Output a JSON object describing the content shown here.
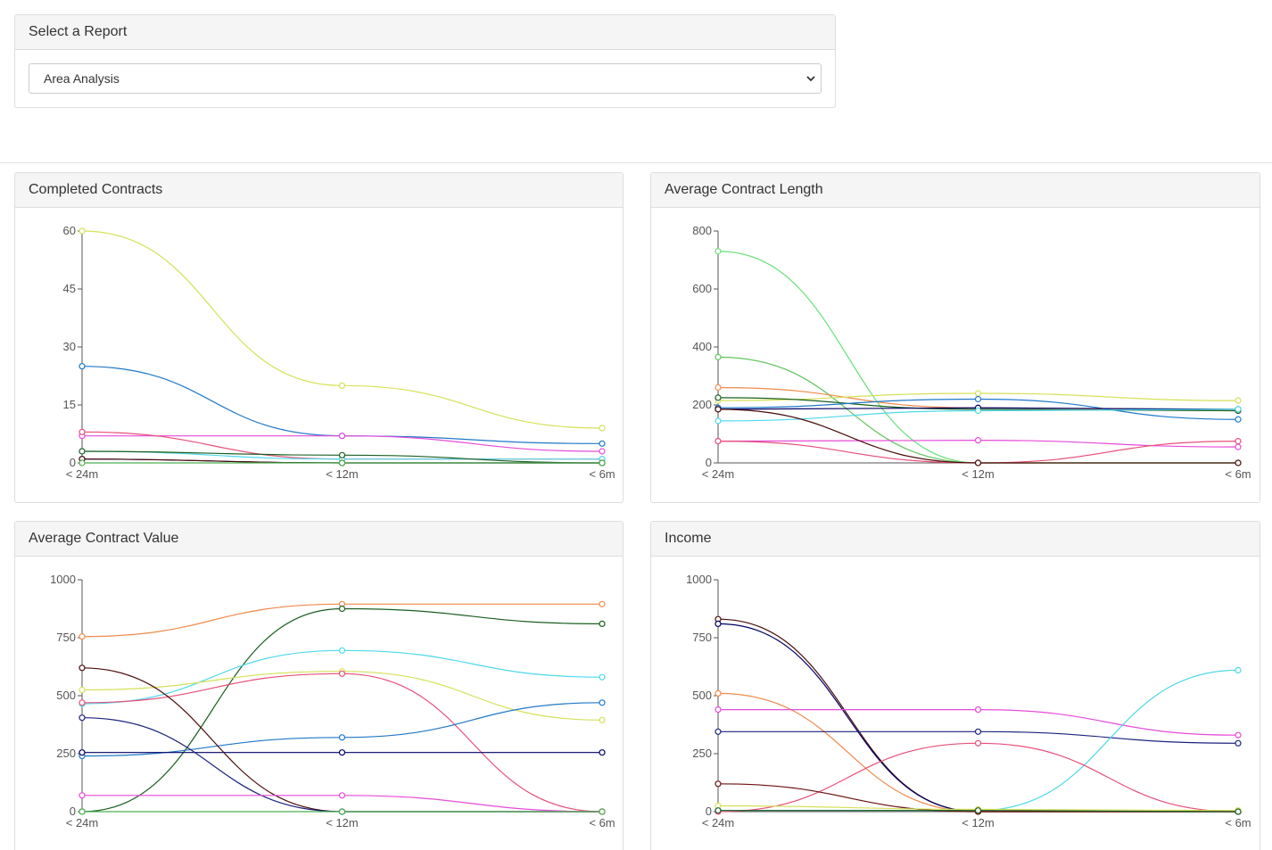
{
  "report": {
    "heading": "Select a Report",
    "selected": "Area Analysis"
  },
  "charts": [
    {
      "title": "Completed Contracts",
      "chart_data": {
        "type": "line",
        "categories": [
          "< 24m",
          "< 12m",
          "< 6m"
        ],
        "ylim": [
          0,
          60
        ],
        "yticks": [
          0,
          15,
          30,
          45,
          60
        ],
        "grid": false,
        "series": [
          {
            "color": "#d4e157",
            "values": [
              60,
              20,
              9
            ]
          },
          {
            "color": "#1f78c8",
            "values": [
              25,
              7,
              5
            ]
          },
          {
            "color": "#e64ad8",
            "values": [
              7,
              7,
              3
            ]
          },
          {
            "color": "#e84f7a",
            "values": [
              8,
              1,
              1
            ]
          },
          {
            "color": "#4dd9ea",
            "values": [
              3,
              1,
              1
            ]
          },
          {
            "color": "#1b5e20",
            "values": [
              3,
              2,
              0
            ]
          },
          {
            "color": "#000066",
            "values": [
              1,
              0,
              0
            ]
          },
          {
            "color": "#4a0a0a",
            "values": [
              1,
              0,
              0
            ]
          },
          {
            "color": "#4caf50",
            "values": [
              0,
              0,
              0
            ]
          }
        ]
      }
    },
    {
      "title": "Average Contract Length",
      "chart_data": {
        "type": "line",
        "categories": [
          "< 24m",
          "< 12m",
          "< 6m"
        ],
        "ylim": [
          0,
          800
        ],
        "yticks": [
          0,
          200,
          400,
          600,
          800
        ],
        "grid": false,
        "series": [
          {
            "color": "#69e07a",
            "values": [
              730,
              0,
              0
            ]
          },
          {
            "color": "#5fc35a",
            "values": [
              365,
              0,
              0
            ]
          },
          {
            "color": "#f08a4b",
            "values": [
              260,
              190,
              180
            ]
          },
          {
            "color": "#d4e157",
            "values": [
              215,
              240,
              215
            ]
          },
          {
            "color": "#1b5e20",
            "values": [
              225,
              185,
              180
            ]
          },
          {
            "color": "#1f78c8",
            "values": [
              190,
              220,
              150
            ]
          },
          {
            "color": "#000066",
            "values": [
              185,
              190,
              185
            ]
          },
          {
            "color": "#4dd9ea",
            "values": [
              145,
              180,
              185
            ]
          },
          {
            "color": "#e64ad8",
            "values": [
              75,
              78,
              55
            ]
          },
          {
            "color": "#e84f7a",
            "values": [
              75,
              0,
              75
            ]
          },
          {
            "color": "#4a0a0a",
            "values": [
              185,
              0,
              0
            ]
          }
        ]
      }
    },
    {
      "title": "Average Contract Value",
      "chart_data": {
        "type": "line",
        "categories": [
          "< 24m",
          "< 12m",
          "< 6m"
        ],
        "ylim": [
          0,
          1000
        ],
        "yticks": [
          0,
          250,
          500,
          750,
          1000
        ],
        "grid": false,
        "series": [
          {
            "color": "#f08a4b",
            "values": [
              755,
              895,
              895
            ]
          },
          {
            "color": "#1b5e20",
            "values": [
              0,
              875,
              810
            ]
          },
          {
            "color": "#4dd9ea",
            "values": [
              465,
              695,
              580
            ]
          },
          {
            "color": "#d4e157",
            "values": [
              525,
              605,
              395
            ]
          },
          {
            "color": "#e84f7a",
            "values": [
              470,
              595,
              0
            ]
          },
          {
            "color": "#1f78c8",
            "values": [
              240,
              320,
              470
            ]
          },
          {
            "color": "#000066",
            "values": [
              255,
              255,
              255
            ]
          },
          {
            "color": "#4a0a0a",
            "values": [
              620,
              0,
              0
            ]
          },
          {
            "color": "#1a237e",
            "values": [
              405,
              0,
              0
            ]
          },
          {
            "color": "#e64ad8",
            "values": [
              70,
              70,
              0
            ]
          },
          {
            "color": "#4caf50",
            "values": [
              0,
              0,
              0
            ]
          }
        ]
      }
    },
    {
      "title": "Income",
      "chart_data": {
        "type": "line",
        "categories": [
          "< 24m",
          "< 12m",
          "< 6m"
        ],
        "ylim": [
          0,
          1000
        ],
        "yticks": [
          0,
          250,
          500,
          750,
          1000
        ],
        "grid": false,
        "series": [
          {
            "color": "#4a0a0a",
            "values": [
              830,
              0,
              0
            ]
          },
          {
            "color": "#000066",
            "values": [
              810,
              0,
              0
            ]
          },
          {
            "color": "#f08a4b",
            "values": [
              510,
              0,
              0
            ]
          },
          {
            "color": "#e64ad8",
            "values": [
              440,
              440,
              330
            ]
          },
          {
            "color": "#1a237e",
            "values": [
              345,
              345,
              295
            ]
          },
          {
            "color": "#4dd9ea",
            "values": [
              5,
              5,
              610
            ]
          },
          {
            "color": "#e84f7a",
            "values": [
              0,
              295,
              0
            ]
          },
          {
            "color": "#6b1010",
            "values": [
              120,
              0,
              0
            ]
          },
          {
            "color": "#d4e157",
            "values": [
              25,
              10,
              5
            ]
          },
          {
            "color": "#1b5e20",
            "values": [
              5,
              5,
              0
            ]
          }
        ]
      }
    }
  ]
}
